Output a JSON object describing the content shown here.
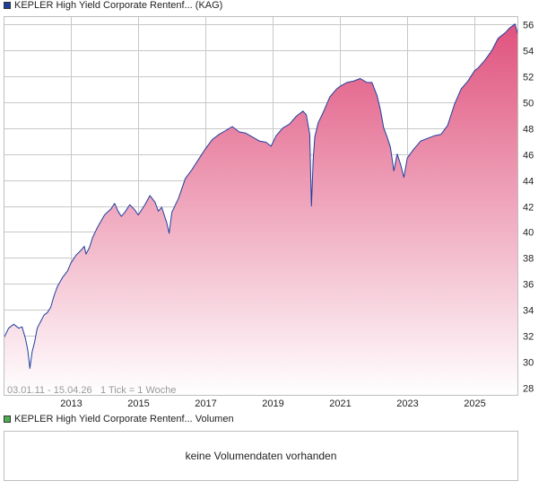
{
  "legend": {
    "price_label": "KEPLER High Yield Corporate Rentenf... (KAG)",
    "price_color": "#1f3f9e",
    "volume_label": "KEPLER High Yield Corporate Rentenf... Volumen",
    "volume_color": "#4caf50"
  },
  "info": {
    "date_range": "03.01.11 - 15.04.26",
    "tick_info": "1 Tick = 1 Woche"
  },
  "volume": {
    "empty_text": "keine Volumendaten vorhanden"
  },
  "colors": {
    "line": "#1f3f9e",
    "fill_top": "#e0527e",
    "fill_bottom": "#ffffff",
    "grid": "#c8c8c8",
    "border": "#bfbfbf"
  },
  "chart_data": {
    "type": "area",
    "title": "",
    "xlabel": "",
    "ylabel": "",
    "xlim": [
      2011.0,
      2026.3
    ],
    "ylim": [
      27.4,
      56.6
    ],
    "x_ticks": [
      2013,
      2015,
      2017,
      2019,
      2021,
      2023,
      2025
    ],
    "x_tick_labels": [
      "2013",
      "2015",
      "2017",
      "2019",
      "2021",
      "2023",
      "2025"
    ],
    "y_ticks": [
      28,
      30,
      32,
      34,
      36,
      38,
      40,
      42,
      44,
      46,
      48,
      50,
      52,
      54,
      56
    ],
    "y_tick_labels": [
      "28",
      "30",
      "32",
      "34",
      "36",
      "38",
      "40",
      "42",
      "44",
      "46",
      "48",
      "50",
      "52",
      "54",
      "56"
    ],
    "grid": true,
    "legend": "top-left",
    "series": [
      {
        "name": "KEPLER High Yield Corporate Rentenf... (KAG)",
        "x": [
          2011.0,
          2011.15,
          2011.3,
          2011.45,
          2011.55,
          2011.65,
          2011.72,
          2011.78,
          2011.85,
          2011.92,
          2012.0,
          2012.1,
          2012.2,
          2012.3,
          2012.4,
          2012.5,
          2012.6,
          2012.75,
          2012.9,
          2013.0,
          2013.15,
          2013.3,
          2013.4,
          2013.45,
          2013.55,
          2013.65,
          2013.8,
          2014.0,
          2014.2,
          2014.3,
          2014.4,
          2014.5,
          2014.6,
          2014.75,
          2014.9,
          2015.0,
          2015.2,
          2015.35,
          2015.5,
          2015.6,
          2015.7,
          2015.85,
          2015.92,
          2016.0,
          2016.2,
          2016.4,
          2016.6,
          2016.8,
          2017.0,
          2017.2,
          2017.4,
          2017.6,
          2017.8,
          2018.0,
          2018.2,
          2018.4,
          2018.6,
          2018.8,
          2018.95,
          2019.1,
          2019.3,
          2019.5,
          2019.7,
          2019.9,
          2020.0,
          2020.1,
          2020.15,
          2020.2,
          2020.25,
          2020.35,
          2020.5,
          2020.7,
          2020.9,
          2021.0,
          2021.2,
          2021.4,
          2021.6,
          2021.8,
          2021.95,
          2022.1,
          2022.2,
          2022.3,
          2022.4,
          2022.5,
          2022.6,
          2022.7,
          2022.8,
          2022.9,
          2023.0,
          2023.2,
          2023.4,
          2023.6,
          2023.8,
          2024.0,
          2024.2,
          2024.4,
          2024.6,
          2024.8,
          2025.0,
          2025.1,
          2025.3,
          2025.5,
          2025.7,
          2025.9,
          2026.05,
          2026.2,
          2026.3
        ],
        "values": [
          31.8,
          32.6,
          32.9,
          32.6,
          32.7,
          31.8,
          30.9,
          29.5,
          30.8,
          31.5,
          32.6,
          33.1,
          33.6,
          33.8,
          34.2,
          35.1,
          35.8,
          36.5,
          37.0,
          37.6,
          38.2,
          38.6,
          38.9,
          38.3,
          38.8,
          39.6,
          40.4,
          41.3,
          41.8,
          42.2,
          41.6,
          41.2,
          41.5,
          42.1,
          41.7,
          41.3,
          42.1,
          42.8,
          42.3,
          41.6,
          41.9,
          40.7,
          39.9,
          41.5,
          42.6,
          44.1,
          44.8,
          45.6,
          46.4,
          47.1,
          47.5,
          47.8,
          48.1,
          47.7,
          47.6,
          47.3,
          47.0,
          46.9,
          46.6,
          47.4,
          48.0,
          48.3,
          48.9,
          49.3,
          49.0,
          47.5,
          42.0,
          45.5,
          47.3,
          48.4,
          49.2,
          50.4,
          51.0,
          51.2,
          51.5,
          51.6,
          51.8,
          51.5,
          51.5,
          50.5,
          49.4,
          48.0,
          47.3,
          46.5,
          44.7,
          46.0,
          45.2,
          44.2,
          45.7,
          46.4,
          47.0,
          47.2,
          47.4,
          47.5,
          48.2,
          49.8,
          51.0,
          51.6,
          52.4,
          52.6,
          53.2,
          53.9,
          54.9,
          55.3,
          55.7,
          56.0,
          55.1
        ]
      }
    ]
  }
}
